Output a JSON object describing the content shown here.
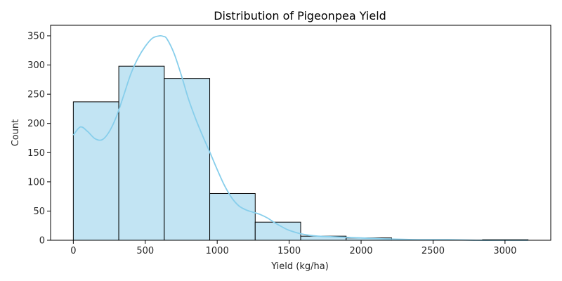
{
  "chart_data": {
    "type": "bar",
    "title": "Distribution of Pigeonpea Yield",
    "xlabel": "Yield (kg/ha)",
    "ylabel": "Count",
    "bins": [
      {
        "start": 0,
        "end": 316,
        "count": 237
      },
      {
        "start": 316,
        "end": 632,
        "count": 298
      },
      {
        "start": 632,
        "end": 948,
        "count": 277
      },
      {
        "start": 948,
        "end": 1264,
        "count": 80
      },
      {
        "start": 1264,
        "end": 1580,
        "count": 31
      },
      {
        "start": 1580,
        "end": 1896,
        "count": 7
      },
      {
        "start": 1896,
        "end": 2212,
        "count": 4
      },
      {
        "start": 2212,
        "end": 2528,
        "count": 0
      },
      {
        "start": 2528,
        "end": 2844,
        "count": 0
      },
      {
        "start": 2844,
        "end": 3160,
        "count": 1
      }
    ],
    "kde": {
      "x": [
        0,
        50,
        100,
        150,
        200,
        250,
        300,
        350,
        400,
        450,
        500,
        550,
        600,
        625,
        650,
        700,
        750,
        800,
        850,
        900,
        950,
        1000,
        1050,
        1100,
        1150,
        1200,
        1250,
        1300,
        1350,
        1400,
        1450,
        1500,
        1600,
        1700,
        1800,
        1900,
        2000,
        2100,
        2200,
        2400,
        2600,
        2800,
        3000,
        3160
      ],
      "y": [
        180,
        194,
        186,
        174,
        172,
        186,
        212,
        248,
        285,
        312,
        332,
        346,
        350,
        349,
        345,
        320,
        283,
        242,
        208,
        178,
        150,
        121,
        94,
        73,
        59,
        52,
        48,
        44,
        38,
        30,
        23,
        17,
        10,
        7,
        6,
        5,
        4,
        3,
        2,
        1,
        1,
        0,
        0,
        0
      ]
    },
    "xticks": [
      0,
      500,
      1000,
      1500,
      2000,
      2500,
      3000
    ],
    "yticks": [
      0,
      50,
      100,
      150,
      200,
      250,
      300,
      350
    ],
    "xlim": [
      -158,
      3318
    ],
    "ylim": [
      0,
      368
    ],
    "grid": false,
    "bar_color": "#c2e4f3",
    "bar_edge_color": "#000000",
    "kde_color": "#87ceeb"
  }
}
